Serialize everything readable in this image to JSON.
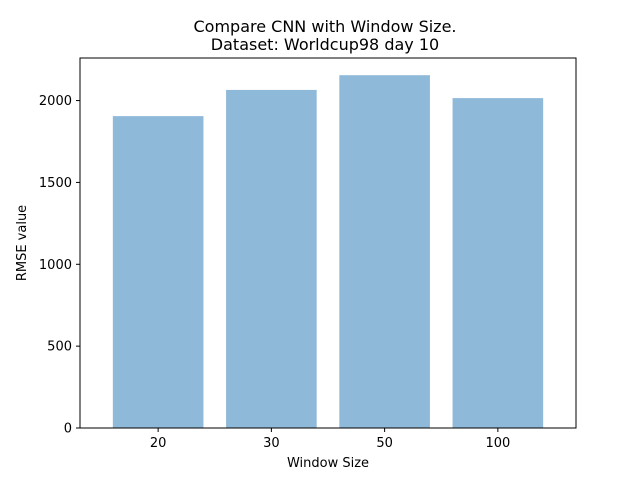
{
  "chart_data": {
    "type": "bar",
    "title_line1": "Compare CNN with Window Size.",
    "title_line2": "Dataset: Worldcup98 day 10",
    "xlabel": "Window Size",
    "ylabel": "RMSE value",
    "categories": [
      "20",
      "30",
      "50",
      "100"
    ],
    "values": [
      1905,
      2065,
      2155,
      2015
    ],
    "ylim": [
      0,
      2260
    ],
    "yticks": [
      0,
      500,
      1000,
      1500,
      2000
    ],
    "ytick_labels": [
      "0",
      "500",
      "1000",
      "1500",
      "2000"
    ],
    "bar_color": "#8fb9d9",
    "grid": false,
    "legend": "none"
  }
}
